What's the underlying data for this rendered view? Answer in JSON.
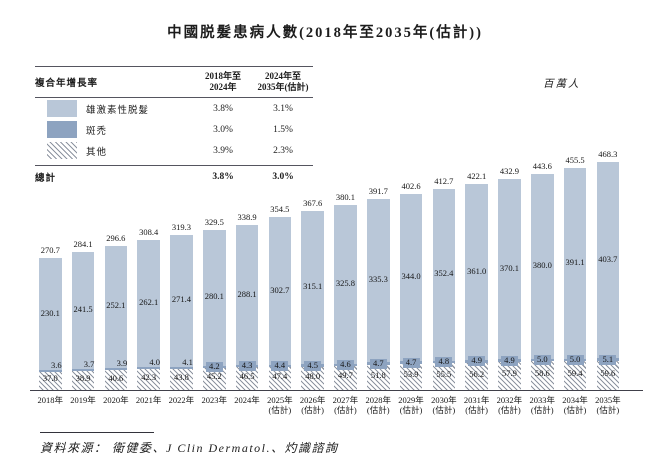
{
  "title": "中國脱髮患病人數(2018年至2035年(估計))",
  "unit_label": "百萬人",
  "cagr_table": {
    "row_header": "複合年增長率",
    "columns": [
      [
        "2018年至",
        "2024年"
      ],
      [
        "2024年至",
        "2035年(估計)"
      ]
    ],
    "rows": [
      {
        "label": "雄激素性脱髮",
        "swatch": "light",
        "values": [
          "3.8%",
          "3.1%"
        ]
      },
      {
        "label": "斑禿",
        "swatch": "dark",
        "values": [
          "3.0%",
          "1.5%"
        ]
      },
      {
        "label": "其他",
        "swatch": "hatch",
        "values": [
          "3.9%",
          "2.3%"
        ]
      }
    ],
    "total_row": {
      "label": "總計",
      "values": [
        "3.8%",
        "3.0%"
      ]
    }
  },
  "chart_data": {
    "type": "bar",
    "stacked": true,
    "title": "中國脱髮患病人數(2018年至2035年(估計))",
    "unit": "百萬人",
    "legend_position": "top-left",
    "ylim": [
      0,
      480
    ],
    "grid": false,
    "categories": [
      [
        "2018年"
      ],
      [
        "2019年"
      ],
      [
        "2020年"
      ],
      [
        "2021年"
      ],
      [
        "2022年"
      ],
      [
        "2023年"
      ],
      [
        "2024年"
      ],
      [
        "2025年",
        "(估計)"
      ],
      [
        "2026年",
        "(估計)"
      ],
      [
        "2027年",
        "(估計)"
      ],
      [
        "2028年",
        "(估計)"
      ],
      [
        "2029年",
        "(估計)"
      ],
      [
        "2030年",
        "(估計)"
      ],
      [
        "2031年",
        "(估計)"
      ],
      [
        "2032年",
        "(估計)"
      ],
      [
        "2033年",
        "(估計)"
      ],
      [
        "2034年",
        "(估計)"
      ],
      [
        "2035年",
        "(估計)"
      ]
    ],
    "series": [
      {
        "name": "雄激素性脱髮",
        "color": "#b9c7d8",
        "values": [
          230.1,
          241.5,
          252.1,
          262.1,
          271.4,
          280.1,
          288.1,
          302.7,
          315.1,
          325.8,
          335.3,
          344.0,
          352.4,
          361.0,
          370.1,
          380.0,
          391.1,
          403.7
        ]
      },
      {
        "name": "斑禿",
        "color": "#8da3c0",
        "values": [
          3.6,
          3.7,
          3.9,
          4.0,
          4.1,
          4.2,
          4.3,
          4.4,
          4.5,
          4.6,
          4.7,
          4.7,
          4.8,
          4.9,
          4.9,
          5.0,
          5.0,
          5.1
        ]
      },
      {
        "name": "其他",
        "color": "hatch",
        "values": [
          37.0,
          38.9,
          40.6,
          42.3,
          43.8,
          45.2,
          46.5,
          47.4,
          48.0,
          49.7,
          51.8,
          53.9,
          55.5,
          56.2,
          57.9,
          58.6,
          59.4,
          59.6
        ]
      }
    ],
    "totals": [
      270.7,
      284.1,
      296.6,
      308.4,
      319.3,
      329.5,
      338.9,
      354.5,
      367.6,
      380.1,
      391.7,
      402.6,
      412.7,
      422.1,
      432.9,
      443.6,
      455.5,
      468.3
    ]
  },
  "source": "資料來源： 衛健委、J Clin Dermatol.、灼識諮詢",
  "colors": {
    "androgenetic": "#b9c7d8",
    "areata": "#8da3c0",
    "hatch_line": "#8d94a0"
  }
}
